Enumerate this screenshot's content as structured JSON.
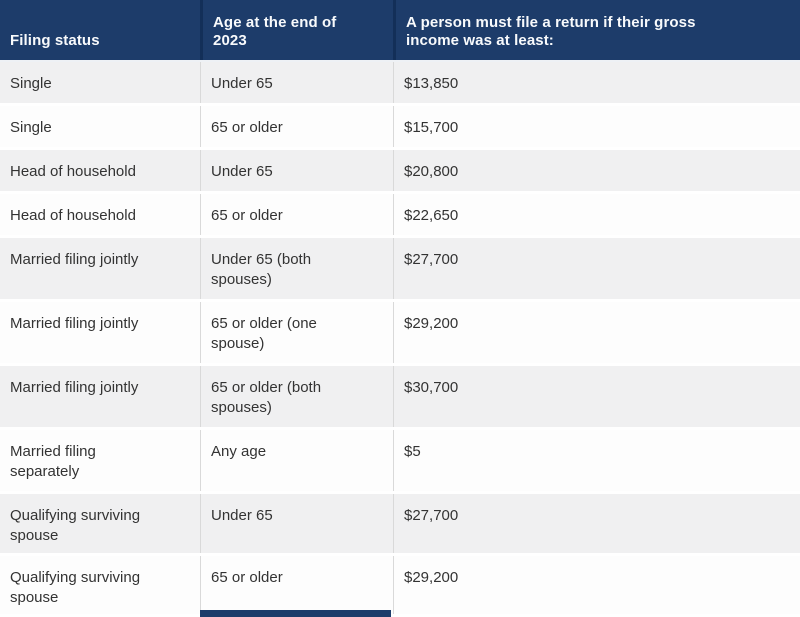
{
  "table": {
    "columns": [
      {
        "label": "Filing status"
      },
      {
        "label": "Age at the end of 2023"
      },
      {
        "label": "A person must file a return if their gross income was at least:"
      }
    ],
    "rows": [
      {
        "filing_status": "Single",
        "age": "Under 65",
        "income": "$13,850"
      },
      {
        "filing_status": "Single",
        "age": "65 or older",
        "income": "$15,700"
      },
      {
        "filing_status": "Head of household",
        "age": "Under 65",
        "income": "$20,800"
      },
      {
        "filing_status": "Head of household",
        "age": "65 or older",
        "income": "$22,650"
      },
      {
        "filing_status": "Married filing jointly",
        "age": "Under 65 (both spouses)",
        "income": "$27,700"
      },
      {
        "filing_status": "Married filing jointly",
        "age": "65 or older (one spouse)",
        "income": "$29,200"
      },
      {
        "filing_status": "Married filing jointly",
        "age": "65 or older (both spouses)",
        "income": "$30,700"
      },
      {
        "filing_status": "Married filing separately",
        "age": "Any age",
        "income": "$5"
      },
      {
        "filing_status": "Qualifying surviving spouse",
        "age": "Under 65",
        "income": "$27,700"
      },
      {
        "filing_status": "Qualifying surviving spouse",
        "age": "65 or older",
        "income": "$29,200"
      }
    ]
  },
  "colors": {
    "header_bg": "#1d3c6a",
    "header_text": "#f8fafc",
    "header_divider": "#132f58",
    "row_gray_bg": "#f0f0f1",
    "row_white_bg": "#fdfdfd",
    "body_text": "#333333",
    "column_divider": "#d9d9d9",
    "next_header_peek_bg": "#1d3c6a"
  }
}
